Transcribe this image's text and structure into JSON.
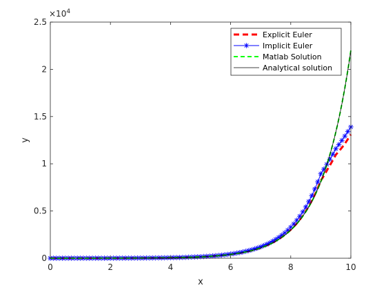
{
  "chart_data": {
    "type": "line",
    "xlabel": "x",
    "ylabel": "y",
    "xlim": [
      0,
      10
    ],
    "ylim": [
      0,
      25000
    ],
    "xticks": [
      0,
      2,
      4,
      6,
      8,
      10
    ],
    "yticks": [
      0,
      5000,
      10000,
      15000,
      20000,
      25000
    ],
    "xtick_labels": [
      "0",
      "2",
      "4",
      "6",
      "8",
      "10"
    ],
    "ytick_labels": [
      "0",
      "0.5",
      "1",
      "1.5",
      "2",
      "2.5"
    ],
    "y_exponent": {
      "base": "×10",
      "power": "4"
    },
    "grid": false,
    "legend_position": "top-right",
    "series": [
      {
        "name": "Explicit Euler",
        "color": "#ff0000",
        "style": "dashed-thick",
        "x": [
          0,
          1,
          2,
          3,
          4,
          5,
          5.5,
          6,
          6.5,
          7,
          7.5,
          8,
          8.25,
          8.5,
          8.75,
          9,
          9.25,
          9.5,
          9.75,
          10
        ],
        "y": [
          1,
          3,
          7,
          20,
          55,
          150,
          248,
          409,
          674,
          1112,
          1834,
          3024,
          3880,
          4985,
          6400,
          8215,
          9560,
          10950,
          11900,
          13100
        ]
      },
      {
        "name": "Implicit Euler",
        "color": "#0000ff",
        "style": "solid-star",
        "x": [
          0,
          1,
          2,
          3,
          4,
          5,
          5.5,
          6,
          6.5,
          7,
          7.5,
          8,
          8.25,
          8.5,
          8.75,
          9,
          9.25,
          9.5,
          9.75,
          10
        ],
        "y": [
          1,
          3,
          8,
          22,
          60,
          165,
          270,
          445,
          735,
          1210,
          1995,
          3290,
          4225,
          5425,
          6965,
          8940,
          10200,
          11600,
          12700,
          13900
        ]
      },
      {
        "name": "Matlab Solution",
        "color": "#00ff00",
        "style": "dashed",
        "x": [
          0,
          1,
          2,
          3,
          4,
          5,
          5.5,
          6,
          6.5,
          7,
          7.5,
          8,
          8.25,
          8.5,
          8.75,
          9,
          9.25,
          9.5,
          9.75,
          10
        ],
        "y": [
          1,
          3,
          7,
          20,
          55,
          148,
          245,
          403,
          665,
          1097,
          1808,
          2981,
          3827,
          4915,
          6310,
          8103,
          10400,
          13360,
          17150,
          22000
        ]
      },
      {
        "name": "Analytical solution",
        "color": "#000000",
        "style": "solid-thin",
        "x": [
          0,
          1,
          2,
          3,
          4,
          5,
          5.5,
          6,
          6.5,
          7,
          7.5,
          8,
          8.25,
          8.5,
          8.75,
          9,
          9.25,
          9.5,
          9.75,
          10
        ],
        "y": [
          1,
          3,
          7,
          20,
          55,
          148,
          245,
          403,
          665,
          1097,
          1808,
          2981,
          3827,
          4915,
          6310,
          8103,
          10400,
          13360,
          17150,
          22000
        ]
      }
    ]
  }
}
